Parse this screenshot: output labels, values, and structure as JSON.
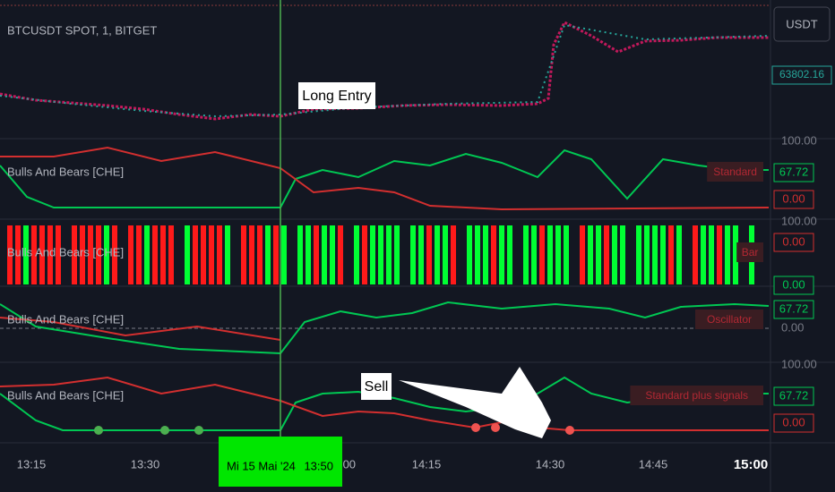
{
  "header": {
    "symbol": "BTCUSDT SPOT, 1, BITGET",
    "currency": "USDT",
    "price": "63802.16"
  },
  "annotations": {
    "long_entry": "Long Entry",
    "sell": "Sell"
  },
  "panes": [
    {
      "title": "Bulls And Bears [CHE]",
      "tag": "Standard",
      "scale": "100.00",
      "labels": [
        "67.72",
        "0.00"
      ]
    },
    {
      "title": "Bulls And Bears [CHE]",
      "tag": "Bar",
      "scale": "100.00",
      "labels": [
        "0.00",
        "0.00"
      ]
    },
    {
      "title": "Bulls And Bears [CHE]",
      "tag": "Oscillator",
      "scale": "0.00",
      "labels": [
        "67.72"
      ]
    },
    {
      "title": "Bulls And Bears [CHE]",
      "tag": "Standard plus signals",
      "scale": "100.00",
      "labels": [
        "67.72",
        "0.00"
      ]
    }
  ],
  "time_axis": {
    "labels": [
      "13:15",
      "13:30",
      ":00",
      "14:15",
      "14:30",
      "14:45",
      "15:00"
    ],
    "crosshair_date": "Mi 15 Mai '24",
    "crosshair_time": "13:50"
  }
}
